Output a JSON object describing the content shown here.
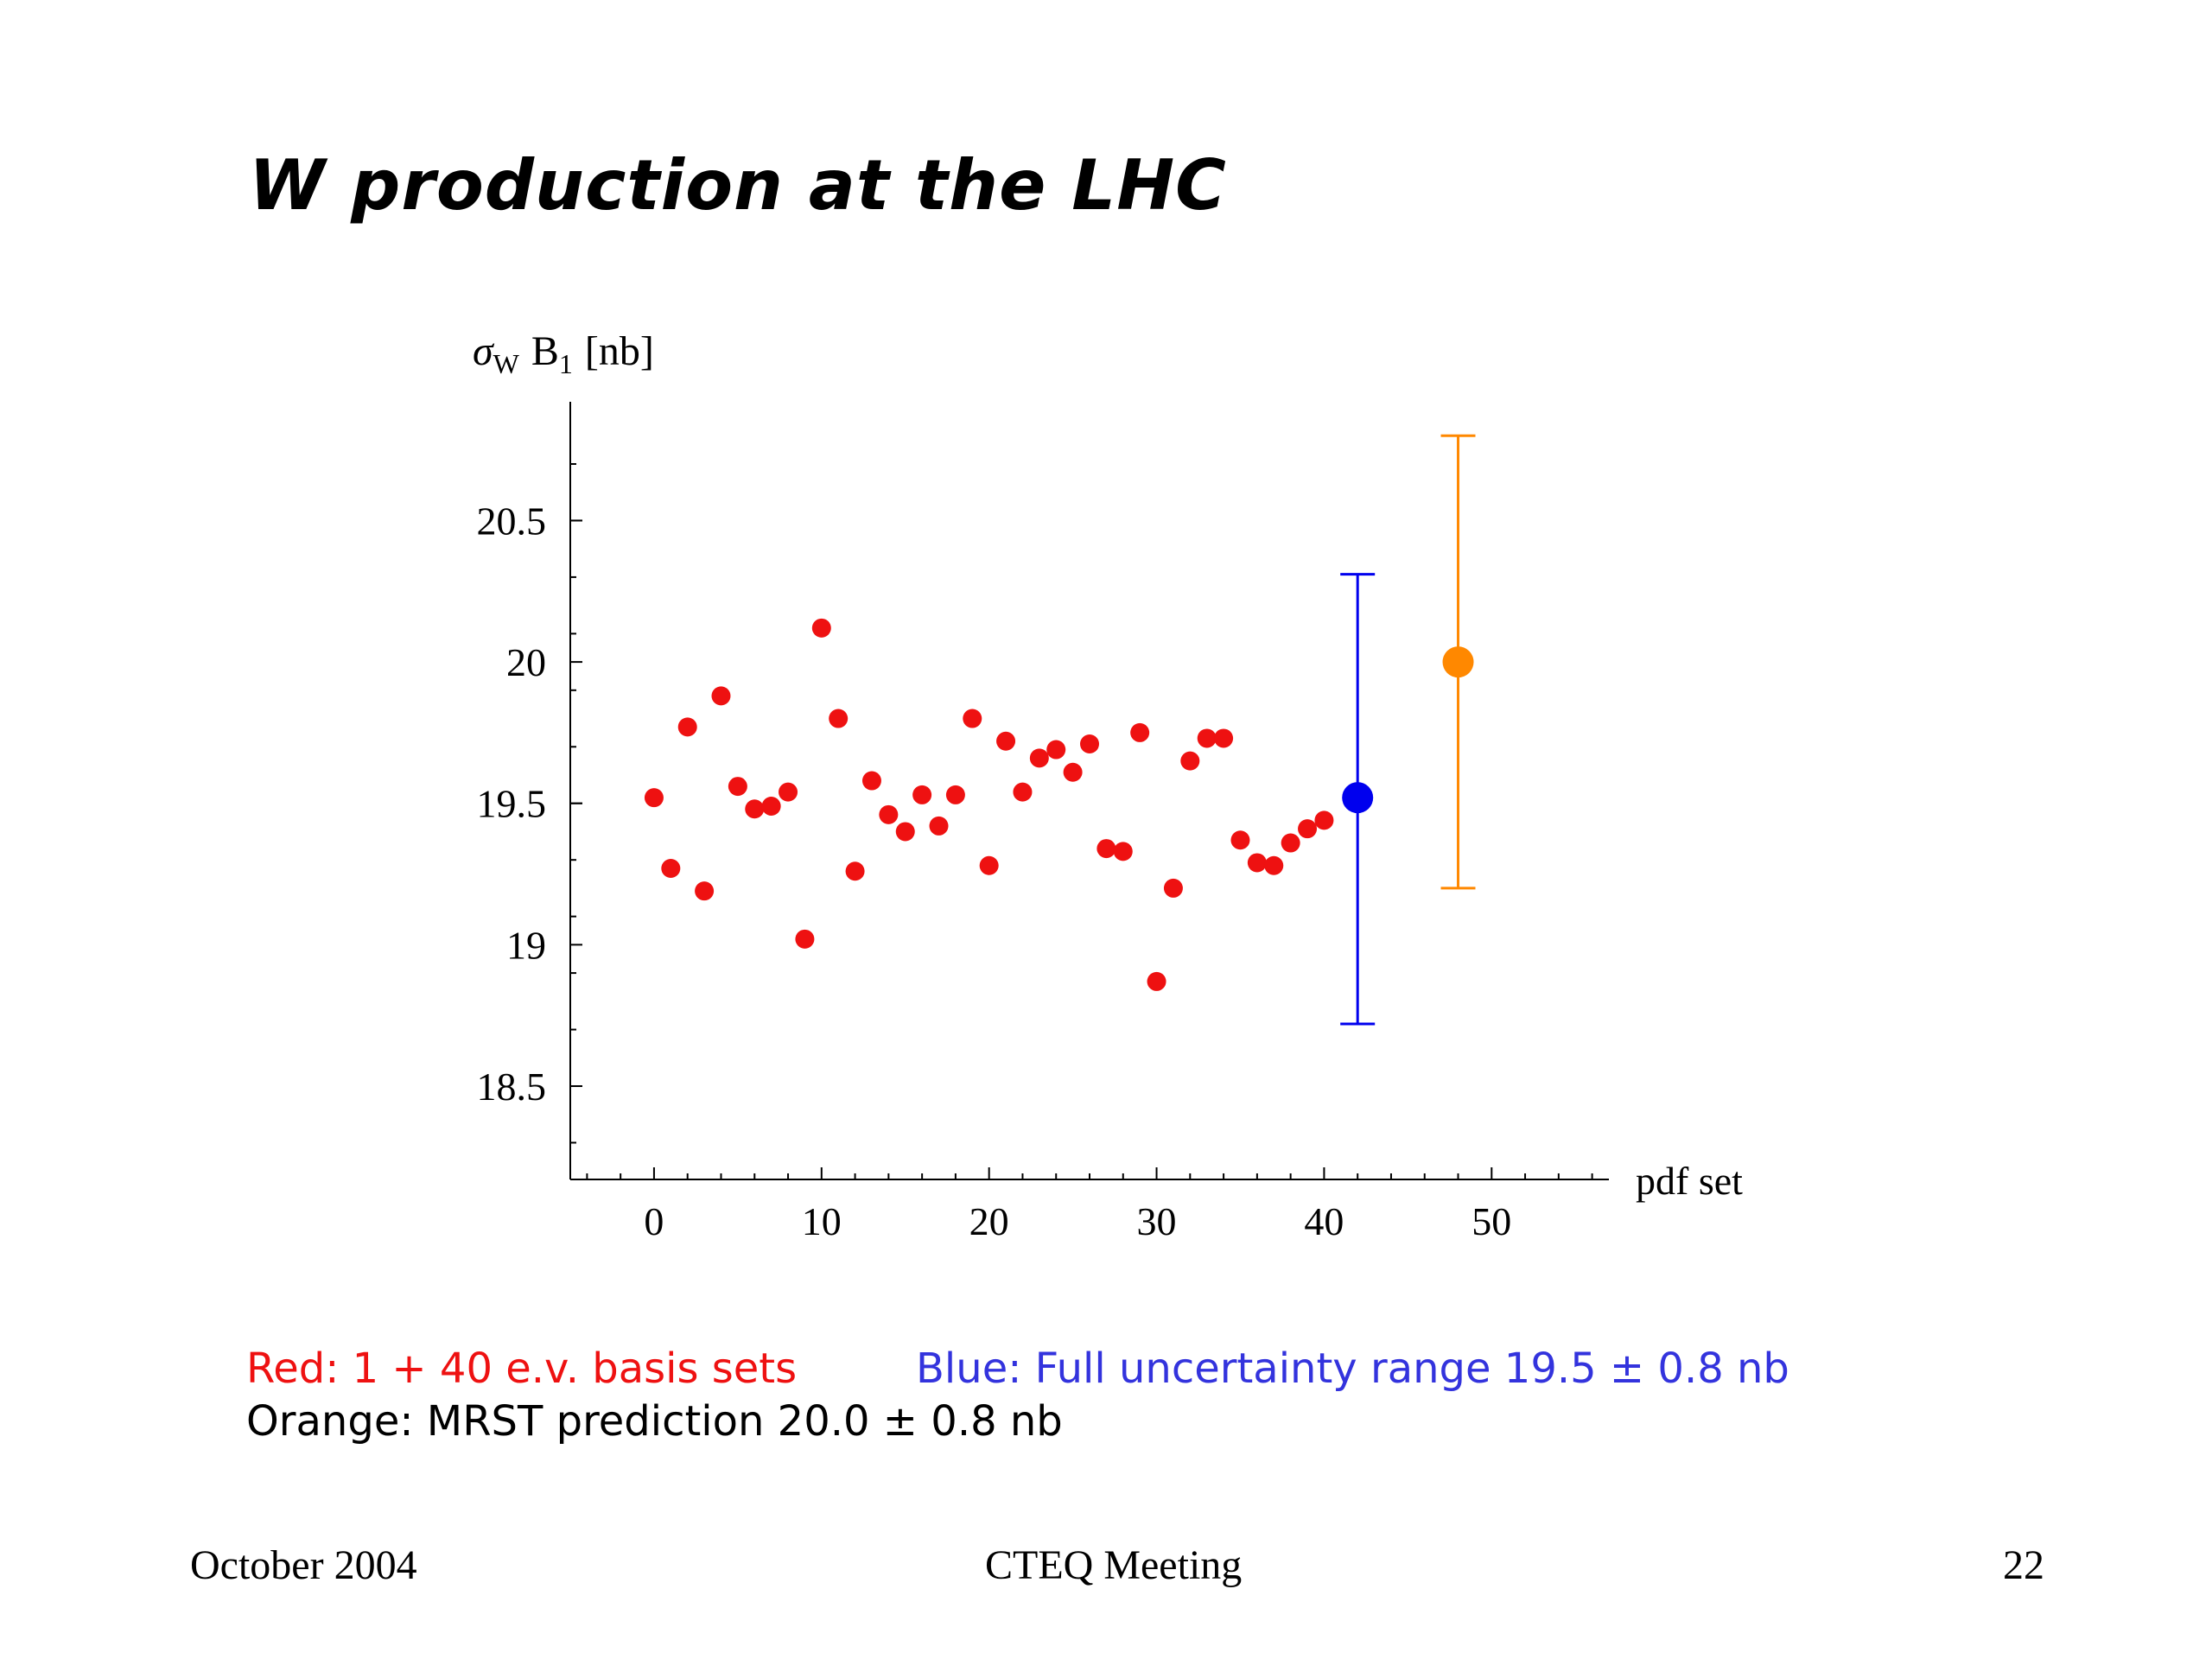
{
  "slide": {
    "title": "W production at the LHC"
  },
  "chart_data": {
    "type": "scatter",
    "ylabel": "σW B1 [nb]",
    "ylabel_parts": {
      "sigma": "σ",
      "sigma_sub": "W",
      "b": "B",
      "b_sub": "1",
      "unit": "[nb]"
    },
    "xlabel": "pdf set",
    "xlim": [
      -5,
      57
    ],
    "ylim": [
      18.17,
      20.92
    ],
    "xticks": [
      0,
      10,
      20,
      30,
      40,
      50
    ],
    "yticks": [
      18.5,
      19,
      19.5,
      20,
      20.5
    ],
    "ytick_labels": [
      "18.5",
      "19",
      "19.5",
      "20",
      "20.5"
    ],
    "series": [
      {
        "color": "#ee1111",
        "x": [
          0,
          1,
          2,
          3,
          4,
          5,
          6,
          7,
          8,
          9,
          10,
          11,
          12,
          13,
          14,
          15,
          16,
          17,
          18,
          19,
          20,
          21,
          22,
          23,
          24,
          25,
          26,
          27,
          28,
          29,
          30,
          31,
          32,
          33,
          34,
          35,
          36,
          37,
          38,
          39,
          40
        ],
        "y": [
          19.52,
          19.27,
          19.77,
          19.19,
          19.88,
          19.56,
          19.48,
          19.49,
          19.54,
          19.02,
          20.12,
          19.8,
          19.26,
          19.58,
          19.46,
          19.4,
          19.53,
          19.42,
          19.53,
          19.8,
          19.28,
          19.72,
          19.54,
          19.66,
          19.69,
          19.61,
          19.71,
          19.34,
          19.33,
          19.75,
          18.87,
          19.2,
          19.65,
          19.73,
          19.73,
          19.37,
          19.29,
          19.28,
          19.36,
          19.41,
          19.44
        ]
      },
      {
        "color": "#0000ee",
        "x": [
          42
        ],
        "y": [
          19.52
        ],
        "error_low": 18.72,
        "error_high": 20.31
      },
      {
        "color": "#ff8800",
        "x": [
          48
        ],
        "y": [
          20.0
        ],
        "error_low": 19.2,
        "error_high": 20.8
      }
    ]
  },
  "captions": {
    "red": {
      "text": "Red: 1 + 40 e.v. basis sets",
      "color": "#ee1111"
    },
    "blue": {
      "text": "Blue: Full uncertainty range 19.5 ± 0.8 nb",
      "color": "#3333dd"
    },
    "orange": {
      "text": "Orange: MRST prediction 20.0 ± 0.8 nb",
      "color": "#000000"
    }
  },
  "footer": {
    "date": "October 2004",
    "meeting": "CTEQ Meeting",
    "page": "22"
  }
}
